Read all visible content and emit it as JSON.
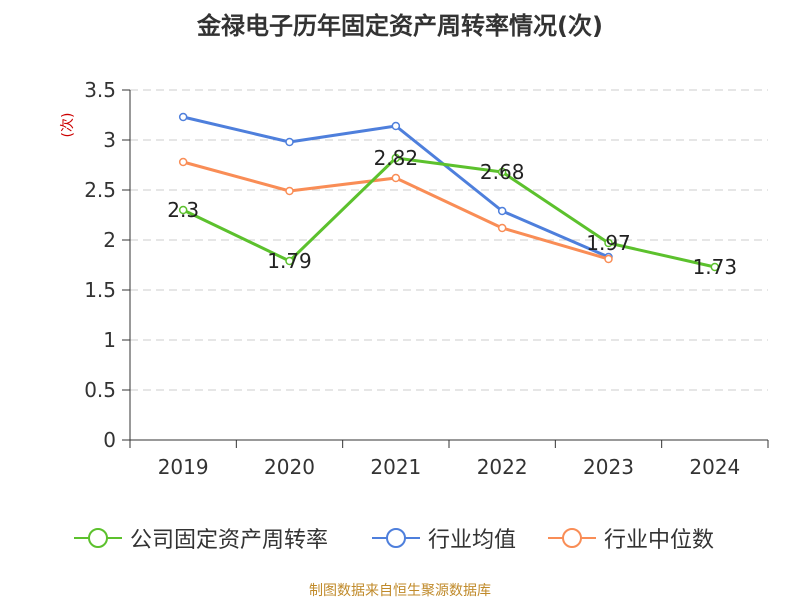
{
  "title": "金禄电子历年固定资产周转率情况(次)",
  "source": "制图数据来自恒生聚源数据库",
  "chart_data": {
    "type": "line",
    "ylabel": "(次)",
    "categories": [
      "2019",
      "2020",
      "2021",
      "2022",
      "2023",
      "2024"
    ],
    "ylim": [
      0,
      3.5
    ],
    "yticks": [
      "0",
      "0.5",
      "1",
      "1.5",
      "2",
      "2.5",
      "3",
      "3.5"
    ],
    "grid": true,
    "legend_position": "bottom",
    "series": [
      {
        "name": "公司固定资产周转率",
        "color": "#5cc12d",
        "values": [
          2.3,
          1.79,
          2.82,
          2.68,
          1.97,
          1.73
        ],
        "labels": [
          "2.3",
          "1.79",
          "2.82",
          "2.68",
          "1.97",
          "1.73"
        ]
      },
      {
        "name": "行业均值",
        "color": "#4e7fdc",
        "values": [
          3.23,
          2.98,
          3.14,
          2.29,
          1.83,
          null
        ]
      },
      {
        "name": "行业中位数",
        "color": "#f98d56",
        "values": [
          2.78,
          2.49,
          2.62,
          2.12,
          1.81,
          null
        ]
      }
    ]
  }
}
